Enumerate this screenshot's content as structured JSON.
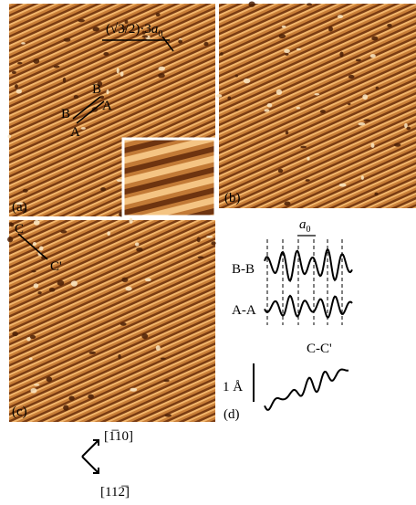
{
  "panels": {
    "a": {
      "label": "(a)",
      "scale_bar": {
        "prefix": "(√3/2)·3",
        "var": "a",
        "sub": "0"
      },
      "lines": [
        "B",
        "A",
        "B",
        "A"
      ]
    },
    "b": {
      "label": "(b)"
    },
    "c": {
      "label": "(c)",
      "line_start": "C",
      "line_end": "C'"
    },
    "d": {
      "label": "(d)",
      "spacing": {
        "var": "a",
        "sub": "0"
      },
      "profiles": [
        "B-B",
        "A-A",
        "C-C'"
      ],
      "height_scale": "1 Å"
    }
  },
  "directions": [
    "[1̅10]",
    "[112̅]"
  ]
}
